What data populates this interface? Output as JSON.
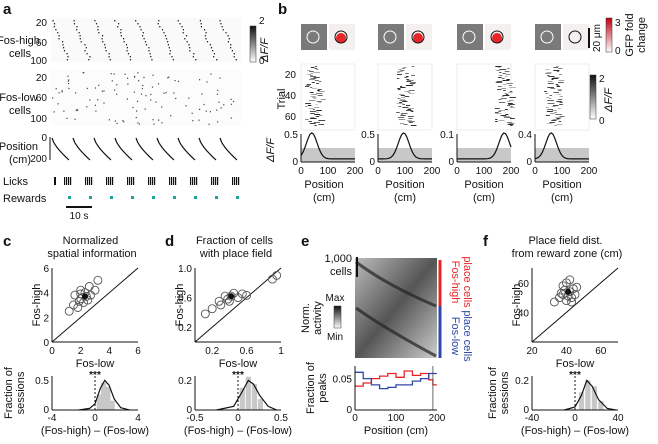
{
  "colors": {
    "fos_high": "#e8262a",
    "fos_low": "#2e49a8",
    "reward": "#1fa39a",
    "gray_fill": "#c8c8c8",
    "scatter_edge": "#555555"
  },
  "panels": {
    "a": {
      "letter": "a",
      "row_fos_high": "Fos-high cells",
      "row_fos_low": "Fos-low cells",
      "row_position": "Position (cm)",
      "row_licks": "Licks",
      "row_rewards": "Rewards",
      "scalebar": "10 s",
      "cbar_label": "ΔF/F",
      "cbar_max": "2",
      "cbar_min": "0",
      "y_ticks_cells": [
        "20",
        "60",
        "100"
      ],
      "y_ticks_pos": [
        "0",
        "200"
      ]
    },
    "b": {
      "letter": "b",
      "scale_label": "20 μm",
      "gfp_label": "GFP fold change",
      "gfp_max": "3",
      "gfp_min": "0",
      "trial_label": "Trial",
      "trial_ticks": [
        "20",
        "40",
        "60"
      ],
      "dff_label": "ΔF/F",
      "cbar_max": "2",
      "cbar_min": "0",
      "xlabel": "Position (cm)",
      "xticks": [
        "0",
        "100",
        "200"
      ],
      "ymax": [
        "0.5",
        "0.5",
        "0.1",
        "0.4"
      ],
      "ymin": "0"
    },
    "c": {
      "letter": "c"
    },
    "d": {
      "letter": "d"
    },
    "e": {
      "letter": "e",
      "cells_label": "1,000 cells",
      "norm_label": "Norm. activity",
      "max_label": "Max",
      "min_label": "Min",
      "fos_high_cells": "Fos-high place cells",
      "fos_low_cells": "Fos-low place cells"
    },
    "f": {
      "letter": "f"
    }
  },
  "chart_data": [
    {
      "type": "scatter",
      "panel": "c",
      "title": "Normalized spatial information",
      "xlabel": "Fos-low",
      "ylabel": "Fos-high",
      "xlim": [
        0,
        6
      ],
      "ylim": [
        0,
        6
      ],
      "xticks": [
        "0",
        "2",
        "4",
        "6"
      ],
      "yticks": [
        "0",
        "2",
        "4",
        "6"
      ],
      "points": [
        [
          1.2,
          2.5
        ],
        [
          1.5,
          3.0
        ],
        [
          1.6,
          3.8
        ],
        [
          1.8,
          2.8
        ],
        [
          2.0,
          3.5
        ],
        [
          2.0,
          4.2
        ],
        [
          2.2,
          3.2
        ],
        [
          2.3,
          4.0
        ],
        [
          2.5,
          3.4
        ],
        [
          2.6,
          4.5
        ],
        [
          2.7,
          3.8
        ],
        [
          3.0,
          4.2
        ],
        [
          3.2,
          5.0
        ],
        [
          2.0,
          3.9
        ],
        [
          1.9,
          3.3
        ],
        [
          2.4,
          3.7
        ]
      ],
      "mean": [
        2.3,
        3.7
      ],
      "inset": {
        "type": "area",
        "ylabel": "Fraction of sessions",
        "xlabel": "(Fos-high) – (Fos-low)",
        "xlim": [
          -4,
          4
        ],
        "xticks": [
          "-4",
          "0",
          "4"
        ],
        "yticks": [
          "0",
          "0.5"
        ],
        "significance": "***",
        "hist_bins": [
          [
            0.4,
            0.2
          ],
          [
            0.8,
            0.35
          ],
          [
            1.2,
            0.3
          ],
          [
            1.6,
            0.12
          ]
        ],
        "curve": [
          [
            -1.5,
            0
          ],
          [
            -0.5,
            0.02
          ],
          [
            0,
            0.08
          ],
          [
            0.5,
            0.28
          ],
          [
            0.9,
            0.38
          ],
          [
            1.3,
            0.32
          ],
          [
            1.8,
            0.14
          ],
          [
            2.4,
            0.03
          ],
          [
            3.2,
            0
          ]
        ]
      }
    },
    {
      "type": "scatter",
      "panel": "d",
      "title": "Fraction of cells with place field",
      "xlabel": "Fos-low",
      "ylabel": "Fos-high",
      "xlim": [
        0,
        1
      ],
      "ylim": [
        0,
        1
      ],
      "xticks": [
        "0.2",
        "0.6",
        "1"
      ],
      "yticks": [
        "0.2",
        "0.6",
        "1.0"
      ],
      "points": [
        [
          0.12,
          0.38
        ],
        [
          0.2,
          0.45
        ],
        [
          0.28,
          0.55
        ],
        [
          0.3,
          0.5
        ],
        [
          0.35,
          0.62
        ],
        [
          0.38,
          0.58
        ],
        [
          0.42,
          0.62
        ],
        [
          0.45,
          0.66
        ],
        [
          0.5,
          0.6
        ],
        [
          0.55,
          0.65
        ],
        [
          0.6,
          0.63
        ],
        [
          0.9,
          0.85
        ],
        [
          0.95,
          0.9
        ],
        [
          0.4,
          0.55
        ]
      ],
      "mean": [
        0.42,
        0.62
      ],
      "inset": {
        "type": "area",
        "ylabel": "",
        "xlabel": "(Fos-high) – (Fos-low)",
        "xlim": [
          -0.5,
          0.5
        ],
        "xticks": [
          "-0.5",
          "0",
          "0.5"
        ],
        "yticks": [
          "0",
          "0.2"
        ],
        "significance": "***",
        "hist_bins": [
          [
            0.05,
            0.12
          ],
          [
            0.12,
            0.18
          ],
          [
            0.19,
            0.14
          ],
          [
            0.26,
            0.06
          ]
        ],
        "curve": [
          [
            -0.25,
            0
          ],
          [
            -0.05,
            0.02
          ],
          [
            0.05,
            0.1
          ],
          [
            0.12,
            0.16
          ],
          [
            0.18,
            0.14
          ],
          [
            0.25,
            0.08
          ],
          [
            0.35,
            0.02
          ],
          [
            0.45,
            0
          ]
        ]
      }
    },
    {
      "type": "line",
      "panel": "e",
      "xlabel": "Position (cm)",
      "ylabel": "Fraction of peaks",
      "xlim": [
        0,
        200
      ],
      "ylim": [
        0,
        0.07
      ],
      "xticks": [
        "0",
        "100",
        "200"
      ],
      "yticks": [
        "0",
        "0.05"
      ],
      "series": [
        {
          "color": "#e8262a",
          "x": [
            0,
            20,
            40,
            60,
            80,
            100,
            120,
            140,
            160,
            180,
            190
          ],
          "y": [
            0.038,
            0.043,
            0.05,
            0.054,
            0.058,
            0.052,
            0.062,
            0.055,
            0.058,
            0.048,
            0.04
          ]
        },
        {
          "color": "#2e49a8",
          "x": [
            0,
            20,
            40,
            60,
            80,
            100,
            120,
            140,
            160,
            180,
            190
          ],
          "y": [
            0.06,
            0.05,
            0.04,
            0.034,
            0.036,
            0.04,
            0.04,
            0.046,
            0.05,
            0.058,
            0.058
          ]
        }
      ]
    },
    {
      "type": "scatter",
      "panel": "f",
      "title": "Place field dist. from reward zone (cm)",
      "xlabel": "Fos-low",
      "ylabel": "Fos-high",
      "xlim": [
        20,
        70
      ],
      "ylim": [
        20,
        70
      ],
      "xticks": [
        "20",
        "40",
        "60"
      ],
      "yticks": [
        "40",
        "60"
      ],
      "points": [
        [
          33,
          47
        ],
        [
          36,
          50
        ],
        [
          38,
          52
        ],
        [
          39,
          55
        ],
        [
          40,
          48
        ],
        [
          41,
          51
        ],
        [
          42,
          54
        ],
        [
          43,
          50
        ],
        [
          44,
          56
        ],
        [
          38,
          58
        ],
        [
          40,
          60
        ],
        [
          42,
          62
        ],
        [
          45,
          52
        ],
        [
          46,
          57
        ],
        [
          43,
          47
        ],
        [
          37,
          53
        ]
      ],
      "mean": [
        41,
        54
      ],
      "inset": {
        "type": "area",
        "ylabel": "Fraction of sessions",
        "xlabel": "(Fos-high) – (Fos-low)",
        "xlim": [
          -40,
          40
        ],
        "xticks": [
          "-40",
          "0",
          "40"
        ],
        "yticks": [
          "0",
          "0.2"
        ],
        "significance": "***",
        "hist_bins": [
          [
            6,
            0.12
          ],
          [
            12,
            0.2
          ],
          [
            18,
            0.16
          ],
          [
            24,
            0.06
          ]
        ],
        "curve": [
          [
            -10,
            0
          ],
          [
            0,
            0.02
          ],
          [
            6,
            0.1
          ],
          [
            11,
            0.2
          ],
          [
            16,
            0.16
          ],
          [
            22,
            0.07
          ],
          [
            30,
            0.01
          ],
          [
            38,
            0
          ]
        ]
      }
    }
  ]
}
